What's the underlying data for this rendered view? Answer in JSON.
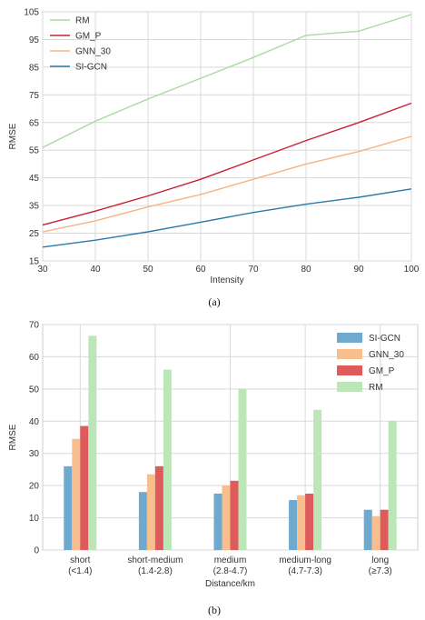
{
  "chart_data": [
    {
      "type": "line",
      "caption": "(a)",
      "xlabel": "Intensity",
      "ylabel": "RMSE",
      "xlim": [
        30,
        100
      ],
      "ylim": [
        15,
        105
      ],
      "xticks": [
        30,
        40,
        50,
        60,
        70,
        80,
        90,
        100
      ],
      "yticks": [
        15,
        25,
        35,
        45,
        55,
        65,
        75,
        85,
        95,
        105
      ],
      "grid": true,
      "legend_position": "top-left",
      "x": [
        30,
        40,
        50,
        60,
        70,
        80,
        90,
        100
      ],
      "series": [
        {
          "name": "RM",
          "color": "#a8dba0",
          "values": [
            56,
            65.5,
            73.5,
            81,
            88.5,
            96.5,
            98,
            104
          ]
        },
        {
          "name": "GM_P",
          "color": "#c8202e",
          "values": [
            28,
            33,
            38.5,
            44.5,
            51.5,
            58.5,
            65,
            72
          ]
        },
        {
          "name": "GNN_30",
          "color": "#f6b383",
          "values": [
            25.5,
            29.5,
            34.5,
            39,
            44.5,
            50,
            54.5,
            60
          ]
        },
        {
          "name": "SI-GCN",
          "color": "#2b7aaa",
          "values": [
            20,
            22.5,
            25.5,
            29,
            32.5,
            35.5,
            38,
            41
          ]
        }
      ]
    },
    {
      "type": "bar",
      "caption": "(b)",
      "xlabel": "Distance/km",
      "ylabel": "RMSE",
      "ylim": [
        0,
        70
      ],
      "yticks": [
        0,
        10,
        20,
        30,
        40,
        50,
        60,
        70
      ],
      "grid": true,
      "legend_position": "top-right",
      "categories": [
        {
          "name": "short",
          "range": "(<1.4)"
        },
        {
          "name": "short-medium",
          "range": "(1.4-2.8)"
        },
        {
          "name": "medium",
          "range": "(2.8-4.7)"
        },
        {
          "name": "medium-long",
          "range": "(4.7-7.3)"
        },
        {
          "name": "long",
          "range": "(≥7.3)"
        }
      ],
      "series": [
        {
          "name": "SI-GCN",
          "color": "#6fa9d0",
          "values": [
            26,
            18,
            17.5,
            15.5,
            12.5
          ]
        },
        {
          "name": "GNN_30",
          "color": "#f9be8e",
          "values": [
            34.5,
            23.5,
            20,
            17,
            10.5
          ]
        },
        {
          "name": "GM_P",
          "color": "#df5a5a",
          "values": [
            38.5,
            26,
            21.5,
            17.5,
            12.5
          ]
        },
        {
          "name": "RM",
          "color": "#bde6b8",
          "values": [
            66.5,
            56,
            50,
            43.5,
            40
          ]
        }
      ]
    }
  ]
}
